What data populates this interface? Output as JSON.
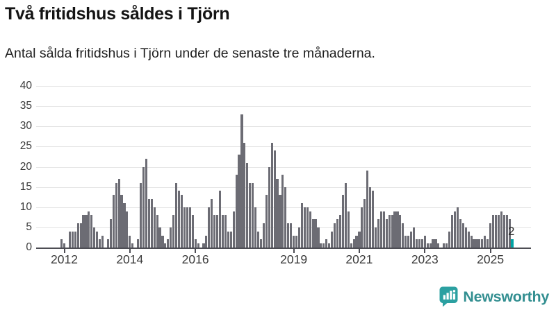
{
  "header": {
    "title": "Två fritidshus såldes i Tjörn",
    "subtitle": "Antal sålda fritidshus i Tjörn under de senaste tre månaderna."
  },
  "chart_data": {
    "type": "bar",
    "title": "Två fritidshus såldes i Tjörn",
    "subtitle": "Antal sålda fritidshus i Tjörn under de senaste tre månaderna.",
    "xlabel": "",
    "ylabel": "",
    "ylim": [
      0,
      40
    ],
    "y_ticks": [
      0,
      5,
      10,
      15,
      20,
      25,
      30,
      35,
      40
    ],
    "grid": "horizontal",
    "legend": "none",
    "bar_color": "#6c6c74",
    "highlight_color": "#00a3a4",
    "x_tick_labels": [
      "2012",
      "2014",
      "2016",
      "2019",
      "2021",
      "2023",
      "2025"
    ],
    "x_tick_indices": [
      1,
      25,
      49,
      85,
      109,
      133,
      157
    ],
    "values": [
      2,
      1,
      0,
      4,
      4,
      4,
      6,
      6,
      8,
      8,
      9,
      8,
      5,
      4,
      2,
      3,
      0,
      2,
      7,
      13,
      16,
      17,
      13,
      11,
      9,
      3,
      1,
      0,
      2,
      16,
      20,
      22,
      12,
      12,
      10,
      8,
      5,
      3,
      1,
      2,
      5,
      8,
      16,
      14,
      13,
      10,
      10,
      10,
      8,
      2,
      1,
      0,
      1,
      3,
      10,
      12,
      8,
      8,
      14,
      8,
      8,
      4,
      4,
      9,
      18,
      23,
      33,
      26,
      21,
      16,
      16,
      10,
      4,
      2,
      6,
      13,
      20,
      26,
      24,
      17,
      13,
      18,
      15,
      6,
      6,
      3,
      3,
      5,
      11,
      10,
      10,
      9,
      7,
      7,
      5,
      1,
      1,
      2,
      1,
      4,
      6,
      7,
      8,
      13,
      16,
      9,
      1,
      2,
      3,
      4,
      10,
      12,
      19,
      15,
      14,
      5,
      7,
      9,
      9,
      7,
      8,
      8,
      9,
      9,
      8,
      6,
      3,
      3,
      4,
      5,
      2,
      2,
      2,
      3,
      1,
      1,
      2,
      2,
      1,
      0,
      1,
      1,
      4,
      8,
      9,
      10,
      7,
      6,
      5,
      4,
      3,
      2,
      2,
      2,
      2,
      3,
      2,
      6,
      8,
      8,
      8,
      9,
      8,
      8,
      7,
      2
    ],
    "highlight": {
      "index": 165,
      "value": 2,
      "label": "2"
    }
  },
  "footer": {
    "brand": "Newsworthy",
    "brand_color": "#2ba0a1"
  }
}
